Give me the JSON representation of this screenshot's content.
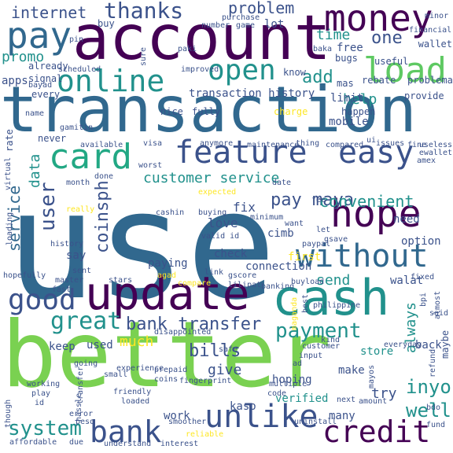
{
  "palette": {
    "dark_purple": "#440154",
    "indigo": "#3b528b",
    "blue_teal": "#31688e",
    "teal": "#21918c",
    "green_teal": "#22a884",
    "green": "#5ec962",
    "lime": "#7ad151",
    "yellow": "#fde725"
  },
  "words": [
    {
      "text": "use"
    },
    {
      "text": "better"
    },
    {
      "text": "transaction"
    },
    {
      "text": "account"
    },
    {
      "text": "cash"
    },
    {
      "text": "update"
    },
    {
      "text": "money"
    },
    {
      "text": "feature"
    },
    {
      "text": "easy"
    },
    {
      "text": "hope"
    },
    {
      "text": "without"
    },
    {
      "text": "unlike"
    },
    {
      "text": "credit"
    },
    {
      "text": "online"
    },
    {
      "text": "load"
    },
    {
      "text": "card"
    },
    {
      "text": "pay"
    },
    {
      "text": "bank"
    },
    {
      "text": "good"
    },
    {
      "text": "open"
    },
    {
      "text": "great"
    },
    {
      "text": "thanks"
    },
    {
      "text": "payment"
    },
    {
      "text": "system"
    },
    {
      "text": "user"
    },
    {
      "text": "service"
    },
    {
      "text": "bills"
    },
    {
      "text": "well"
    },
    {
      "text": "inyo"
    },
    {
      "text": "coinsph"
    },
    {
      "text": "pay maya"
    },
    {
      "text": "bank transfer"
    },
    {
      "text": "convenient"
    },
    {
      "text": "problem"
    },
    {
      "text": "add"
    },
    {
      "text": "one"
    },
    {
      "text": "internet"
    },
    {
      "text": "customer service"
    },
    {
      "text": "give"
    },
    {
      "text": "much"
    },
    {
      "text": "send"
    },
    {
      "text": "always"
    },
    {
      "text": "promo"
    },
    {
      "text": "time"
    },
    {
      "text": "transaction history"
    },
    {
      "text": "data"
    },
    {
      "text": "help"
    },
    {
      "text": "limit"
    },
    {
      "text": "mobile"
    },
    {
      "text": "lot"
    },
    {
      "text": "fix"
    },
    {
      "text": "love"
    },
    {
      "text": "try"
    },
    {
      "text": "back"
    },
    {
      "text": "store"
    },
    {
      "text": "many"
    },
    {
      "text": "free"
    },
    {
      "text": "apps"
    },
    {
      "text": "cimb"
    },
    {
      "text": "connection"
    },
    {
      "text": "first"
    },
    {
      "text": "walat"
    },
    {
      "text": "option"
    },
    {
      "text": "need"
    },
    {
      "text": "check"
    },
    {
      "text": "paying"
    },
    {
      "text": "verified"
    },
    {
      "text": "kaso"
    },
    {
      "text": "work"
    },
    {
      "text": "keep"
    },
    {
      "text": "say"
    },
    {
      "text": "used"
    },
    {
      "text": "hoping"
    },
    {
      "text": "make"
    },
    {
      "text": "buy"
    },
    {
      "text": "maybe"
    },
    {
      "text": "rebate"
    },
    {
      "text": "useful"
    },
    {
      "text": "know"
    },
    {
      "text": "problema"
    },
    {
      "text": "mas"
    },
    {
      "text": "already"
    },
    {
      "text": "signal"
    },
    {
      "text": "scheduled"
    },
    {
      "text": "every"
    },
    {
      "text": "rate"
    },
    {
      "text": "never"
    },
    {
      "text": "nice"
    },
    {
      "text": "fully"
    },
    {
      "text": "charge"
    },
    {
      "text": "happen"
    },
    {
      "text": "provide"
    },
    {
      "text": "bugs"
    },
    {
      "text": "wallet"
    },
    {
      "text": "financial"
    },
    {
      "text": "minor"
    },
    {
      "text": "purchase"
    },
    {
      "text": "game"
    },
    {
      "text": "number"
    },
    {
      "text": "sure"
    },
    {
      "text": "paki"
    },
    {
      "text": "baka"
    },
    {
      "text": "pin"
    },
    {
      "text": "bayad"
    },
    {
      "text": "improved"
    },
    {
      "text": "name"
    },
    {
      "text": "gamitin"
    },
    {
      "text": "available"
    },
    {
      "text": "visa"
    },
    {
      "text": "anymore"
    },
    {
      "text": "maintenance"
    },
    {
      "text": "thing"
    },
    {
      "text": "compared"
    },
    {
      "text": "ui"
    },
    {
      "text": "issues"
    },
    {
      "text": "fine"
    },
    {
      "text": "useless"
    },
    {
      "text": "amex"
    },
    {
      "text": "ewallet"
    },
    {
      "text": "worst"
    },
    {
      "text": "virtual"
    },
    {
      "text": "month"
    },
    {
      "text": "done"
    },
    {
      "text": "date"
    },
    {
      "text": "expected"
    },
    {
      "text": "really"
    },
    {
      "text": "cashin"
    },
    {
      "text": "valid id"
    },
    {
      "text": "minimum"
    },
    {
      "text": "want"
    },
    {
      "text": "let"
    },
    {
      "text": "fee"
    },
    {
      "text": "gsave"
    },
    {
      "text": "buying"
    },
    {
      "text": "agad"
    },
    {
      "text": "gscore"
    },
    {
      "text": "paypal"
    },
    {
      "text": "loading"
    },
    {
      "text": "history"
    },
    {
      "text": "hopefully"
    },
    {
      "text": "master"
    },
    {
      "text": "sent"
    },
    {
      "text": "fast"
    },
    {
      "text": "stars"
    },
    {
      "text": "compare"
    },
    {
      "text": "link"
    },
    {
      "text": "lilipat"
    },
    {
      "text": "banking"
    },
    {
      "text": "buyload"
    },
    {
      "text": "fixed"
    },
    {
      "text": "bpi"
    },
    {
      "text": "said"
    },
    {
      "text": "almost"
    },
    {
      "text": "best"
    },
    {
      "text": "maganda"
    },
    {
      "text": "philippine"
    },
    {
      "text": "disappointed"
    },
    {
      "text": "kind"
    },
    {
      "text": "customer"
    },
    {
      "text": "input"
    },
    {
      "text": "ad"
    },
    {
      "text": "safe"
    },
    {
      "text": "going"
    },
    {
      "text": "experience"
    },
    {
      "text": "prepaid"
    },
    {
      "text": "coins"
    },
    {
      "text": "fingerprint"
    },
    {
      "text": "everyday"
    },
    {
      "text": "refund"
    },
    {
      "text": "transfer"
    },
    {
      "text": "small"
    },
    {
      "text": "working"
    },
    {
      "text": "play"
    },
    {
      "text": "friendly"
    },
    {
      "text": "loaded"
    },
    {
      "text": "though"
    },
    {
      "text": "id"
    },
    {
      "text": "hassle"
    },
    {
      "text": "error"
    },
    {
      "text": "peso"
    },
    {
      "text": "smoother"
    },
    {
      "text": "reliable"
    },
    {
      "text": "code"
    },
    {
      "text": "multiple"
    },
    {
      "text": "uninstall"
    },
    {
      "text": "next"
    },
    {
      "text": "amount"
    },
    {
      "text": "mayos"
    },
    {
      "text": "bdo"
    },
    {
      "text": "fund"
    },
    {
      "text": "affordable"
    },
    {
      "text": "due"
    },
    {
      "text": "understand"
    },
    {
      "text": "interest"
    }
  ]
}
